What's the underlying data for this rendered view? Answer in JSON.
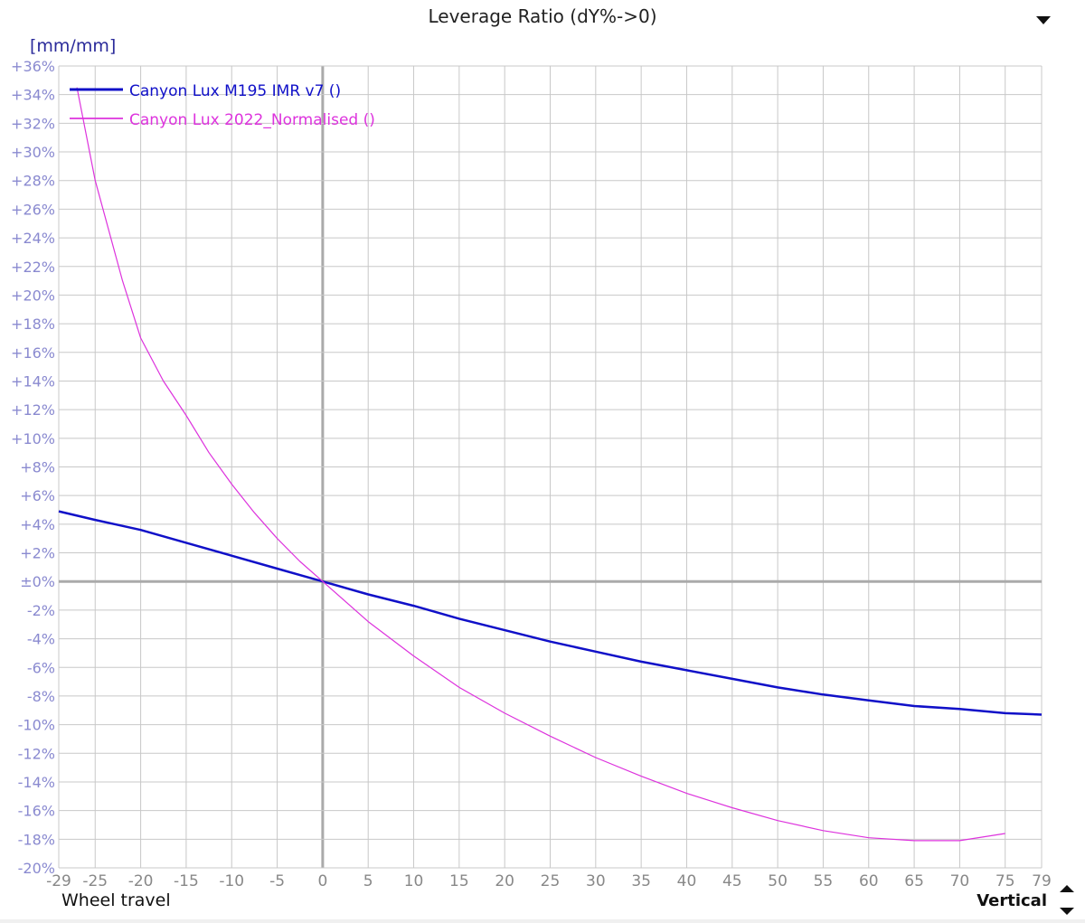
{
  "header": {
    "title": "Leverage Ratio (dY%->0)",
    "dropdown_icon": "triangle-down-icon"
  },
  "axis": {
    "unit": "[mm/mm]",
    "xlabel": "Wheel travel",
    "orientation_label": "Vertical"
  },
  "colors": {
    "series1": "#1010c8",
    "series2": "#dd33dd",
    "grid": "#c8c8c8",
    "ytick": "#8a8ad0",
    "xtick": "#888888"
  },
  "chart_data": {
    "type": "line",
    "title": "Leverage Ratio (dY%->0)",
    "xlabel": "Wheel travel",
    "ylabel": "[mm/mm]",
    "xlim": [
      -29,
      79
    ],
    "ylim": [
      -20,
      36
    ],
    "x_ticks": [
      -29,
      -25,
      -20,
      -15,
      -10,
      -5,
      0,
      5,
      10,
      15,
      20,
      25,
      30,
      35,
      40,
      45,
      50,
      55,
      60,
      65,
      70,
      75,
      79
    ],
    "y_ticks": [
      "+36%",
      "+34%",
      "+32%",
      "+30%",
      "+28%",
      "+26%",
      "+24%",
      "+22%",
      "+20%",
      "+18%",
      "+16%",
      "+14%",
      "+12%",
      "+10%",
      "+8%",
      "+6%",
      "+4%",
      "+2%",
      "±0%",
      "-2%",
      "-4%",
      "-6%",
      "-8%",
      "-10%",
      "-12%",
      "-14%",
      "-16%",
      "-18%",
      "-20%"
    ],
    "grid": true,
    "legend_position": "top-left",
    "series": [
      {
        "name": "Canyon Lux M195 IMR v7 ()",
        "x": [
          -29,
          -25,
          -20,
          -15,
          -10,
          -5,
          0,
          5,
          10,
          15,
          20,
          25,
          30,
          35,
          40,
          45,
          50,
          55,
          60,
          65,
          70,
          75,
          79
        ],
        "values": [
          4.9,
          4.3,
          3.6,
          2.7,
          1.8,
          0.9,
          0,
          -0.9,
          -1.7,
          -2.6,
          -3.4,
          -4.2,
          -4.9,
          -5.6,
          -6.2,
          -6.8,
          -7.4,
          -7.9,
          -8.3,
          -8.7,
          -8.9,
          -9.2,
          -9.3
        ]
      },
      {
        "name": "Canyon Lux 2022_Normalised ()",
        "x": [
          -27,
          -25,
          -22,
          -20,
          -17.5,
          -15,
          -12.5,
          -10,
          -7.5,
          -5,
          -2.5,
          0,
          5,
          10,
          15,
          20,
          25,
          30,
          35,
          40,
          45,
          50,
          55,
          60,
          65,
          70,
          75
        ],
        "values": [
          34.5,
          28.0,
          21.0,
          17.0,
          14.0,
          11.6,
          9.0,
          6.8,
          4.8,
          3.0,
          1.4,
          0,
          -2.8,
          -5.2,
          -7.4,
          -9.2,
          -10.8,
          -12.3,
          -13.6,
          -14.8,
          -15.8,
          -16.7,
          -17.4,
          -17.9,
          -18.1,
          -18.1,
          -17.6
        ]
      }
    ]
  }
}
